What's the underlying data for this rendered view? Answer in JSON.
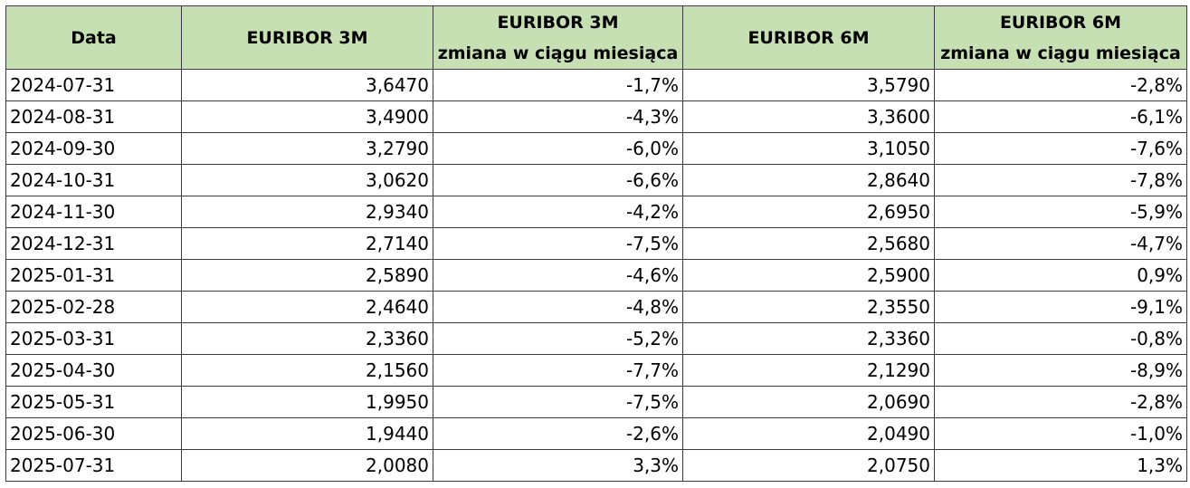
{
  "table": {
    "headers": {
      "date": "Data",
      "euribor_3m": "EURIBOR 3M",
      "euribor_3m_change": [
        "EURIBOR 3M",
        "zmiana w ciągu miesiąca"
      ],
      "euribor_6m": "EURIBOR 6M",
      "euribor_6m_change": [
        "EURIBOR 6M",
        "zmiana w ciągu miesiąca"
      ]
    },
    "header_color": "#c6e0b4",
    "rows": [
      [
        "2024-07-31",
        "3,6470",
        "-1,7%",
        "3,5790",
        "-2,8%"
      ],
      [
        "2024-08-31",
        "3,4900",
        "-4,3%",
        "3,3600",
        "-6,1%"
      ],
      [
        "2024-09-30",
        "3,2790",
        "-6,0%",
        "3,1050",
        "-7,6%"
      ],
      [
        "2024-10-31",
        "3,0620",
        "-6,6%",
        "2,8640",
        "-7,8%"
      ],
      [
        "2024-11-30",
        "2,9340",
        "-4,2%",
        "2,6950",
        "-5,9%"
      ],
      [
        "2024-12-31",
        "2,7140",
        "-7,5%",
        "2,5680",
        "-4,7%"
      ],
      [
        "2025-01-31",
        "2,5890",
        "-4,6%",
        "2,5900",
        "0,9%"
      ],
      [
        "2025-02-28",
        "2,4640",
        "-4,8%",
        "2,3550",
        "-9,1%"
      ],
      [
        "2025-03-31",
        "2,3360",
        "-5,2%",
        "2,3360",
        "-0,8%"
      ],
      [
        "2025-04-30",
        "2,1560",
        "-7,7%",
        "2,1290",
        "-8,9%"
      ],
      [
        "2025-05-31",
        "1,9950",
        "-7,5%",
        "2,0690",
        "-2,8%"
      ],
      [
        "2025-06-30",
        "1,9440",
        "-2,6%",
        "2,0490",
        "-1,0%"
      ],
      [
        "2025-07-31",
        "2,0080",
        "3,3%",
        "2,0750",
        "1,3%"
      ]
    ]
  }
}
